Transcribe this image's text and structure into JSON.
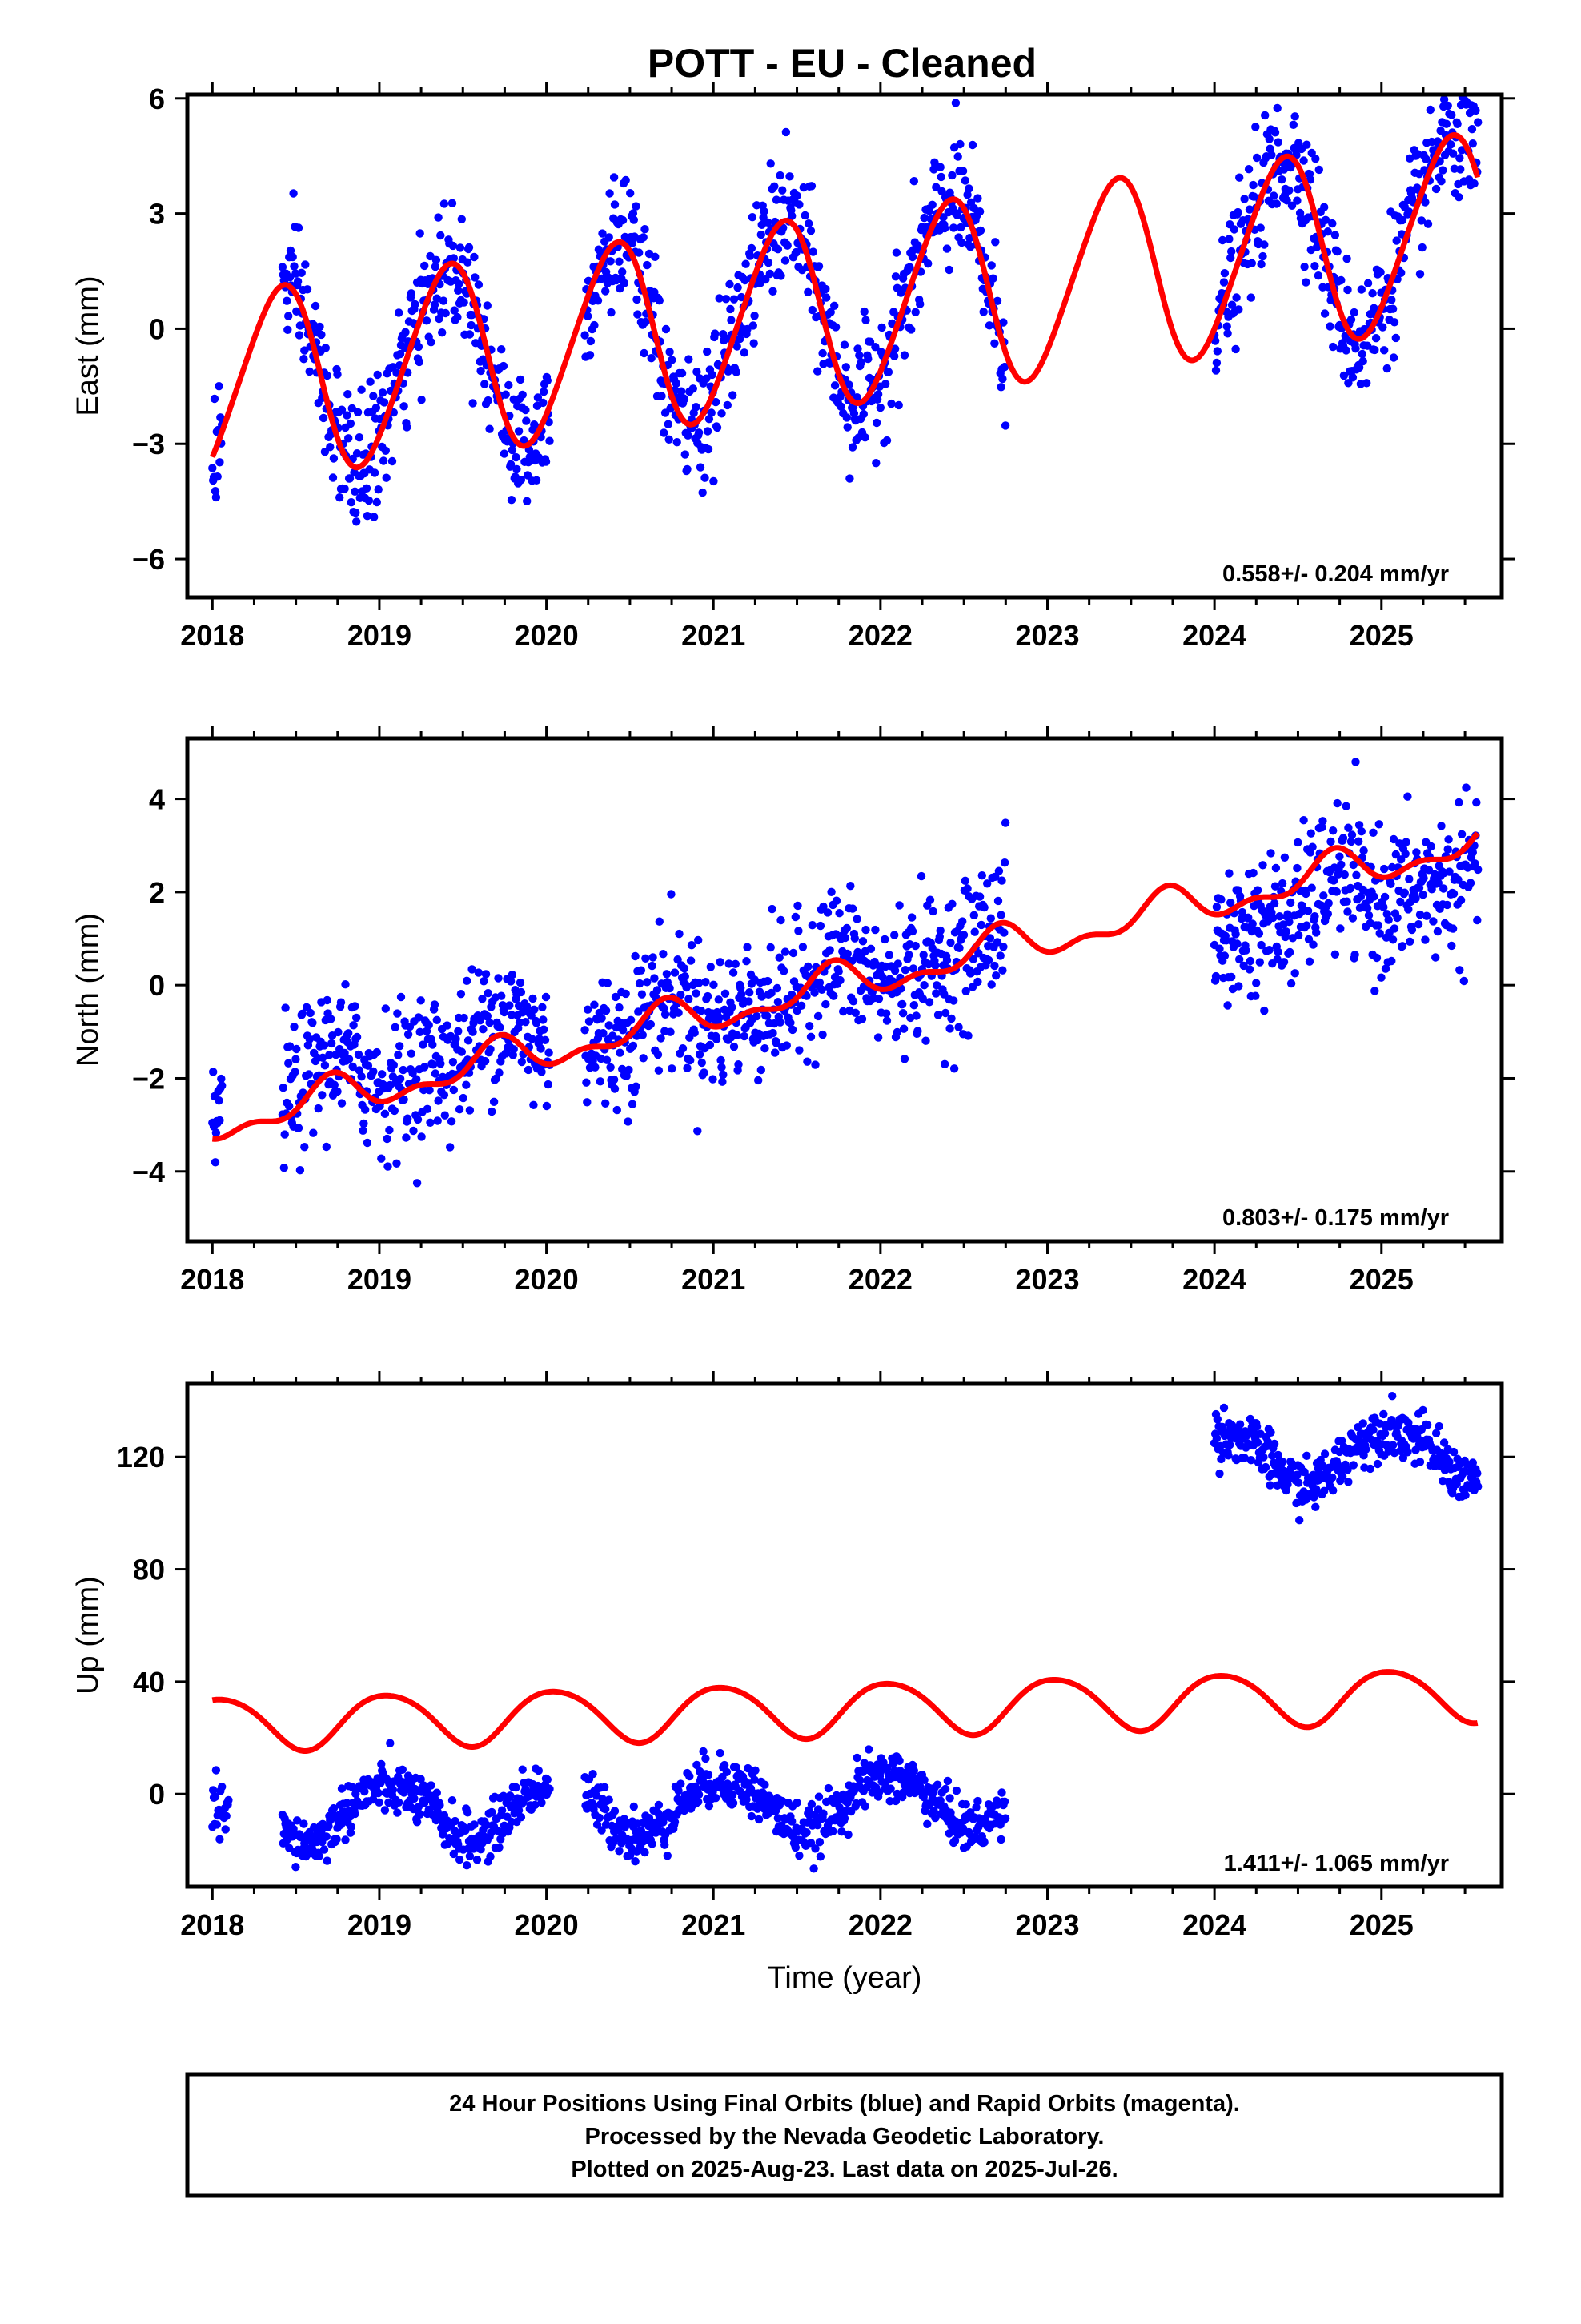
{
  "title": "POTT  - EU - Cleaned",
  "colors": {
    "final_points": "#0000ff",
    "model": "#ff0000",
    "frame": "#000000"
  },
  "chart_data": [
    {
      "type": "scatter",
      "panel": "east",
      "ylabel": "East (mm)",
      "xlim": [
        2017.85,
        2025.72
      ],
      "ylim": [
        -7,
        6.1
      ],
      "yticks": [
        -6,
        -3,
        0,
        3,
        6
      ],
      "xticks": [
        2018,
        2019,
        2020,
        2021,
        2022,
        2023,
        2024,
        2025
      ],
      "rate_label": "0.558+/- 0.204 mm/yr",
      "grid": false,
      "model": {
        "name": "",
        "offset": -1.6,
        "trend": 0.558,
        "ref_year": 2018.0,
        "annual_amp": 2.45,
        "annual_phase": 0.15,
        "semi_amp": 0.25,
        "semi_phase": 0.4
      },
      "segments": [
        {
          "start": 2018.0,
          "end": 2018.06,
          "spread": 0.85,
          "shift": 0
        },
        {
          "start": 2018.42,
          "end": 2020.02,
          "spread": 0.85,
          "shift": 0
        },
        {
          "start": 2020.23,
          "end": 2022.75,
          "spread": 0.85,
          "shift": 0
        },
        {
          "start": 2024.0,
          "end": 2025.58,
          "spread": 0.85,
          "shift": 0
        }
      ]
    },
    {
      "type": "scatter",
      "panel": "north",
      "ylabel": "North (mm)",
      "xlim": [
        2017.85,
        2025.72
      ],
      "ylim": [
        -5.5,
        5.3
      ],
      "yticks": [
        -4,
        -2,
        0,
        2,
        4
      ],
      "xticks": [
        2018,
        2019,
        2020,
        2021,
        2022,
        2023,
        2024,
        2025
      ],
      "rate_label": "0.803+/- 0.175 mm/yr",
      "grid": false,
      "model": {
        "name": "",
        "offset": -3.0,
        "trend": 0.803,
        "ref_year": 2018.0,
        "annual_amp": 0.35,
        "annual_phase": 0.45,
        "semi_amp": 0.2,
        "semi_phase": 0.1
      },
      "segments": [
        {
          "start": 2018.0,
          "end": 2018.06,
          "spread": 0.75,
          "shift": 0.5
        },
        {
          "start": 2018.42,
          "end": 2020.02,
          "spread": 0.75,
          "shift": 0.4
        },
        {
          "start": 2020.23,
          "end": 2022.75,
          "spread": 0.75,
          "shift": 0.1
        },
        {
          "start": 2024.0,
          "end": 2025.58,
          "spread": 0.75,
          "shift": -0.6
        }
      ]
    },
    {
      "type": "scatter",
      "panel": "up",
      "ylabel": "Up (mm)",
      "xlabel": "Time (year)",
      "xlim": [
        2017.85,
        2025.72
      ],
      "ylim": [
        -33,
        146
      ],
      "yticks": [
        0,
        40,
        80,
        120
      ],
      "xticks": [
        2018,
        2019,
        2020,
        2021,
        2022,
        2023,
        2024,
        2025
      ],
      "rate_label": "1.411+/- 1.065 mm/yr",
      "grid": false,
      "model": {
        "name": "",
        "offset": 25.0,
        "trend": 1.411,
        "ref_year": 2018.0,
        "annual_amp": 9.5,
        "annual_phase": 0.8,
        "semi_amp": 1.0,
        "semi_phase": 0.2
      },
      "segments": [
        {
          "start": 2018.0,
          "end": 2018.1,
          "spread": 4.5,
          "shift": -40
        },
        {
          "start": 2018.42,
          "end": 2020.02,
          "spread": 4.5,
          "shift": -33
        },
        {
          "start": 2020.23,
          "end": 2022.75,
          "spread": 4.5,
          "shift": -33
        },
        {
          "start": 2024.0,
          "end": 2025.58,
          "spread": 4.5,
          "shift": 86
        }
      ]
    }
  ],
  "footer": {
    "line1": "24 Hour Positions Using Final Orbits (blue) and Rapid Orbits (magenta).",
    "line2": "Processed by the Nevada Geodetic Laboratory.",
    "line3": "Plotted on 2025-Aug-23. Last data on 2025-Jul-26."
  }
}
